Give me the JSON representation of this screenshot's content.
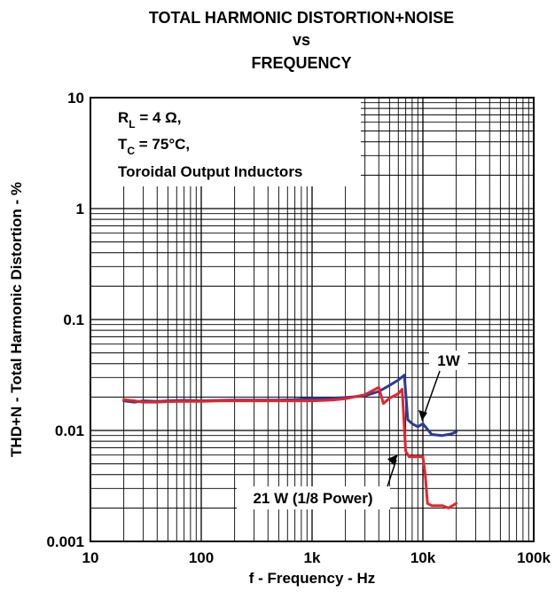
{
  "chart_data": {
    "type": "line",
    "title_lines": [
      "TOTAL HARMONIC DISTORTION+NOISE",
      "vs",
      "FREQUENCY"
    ],
    "xlabel": "f - Frequency - Hz",
    "ylabel": "THD+N - Total Harmonic Distortion - %",
    "x_scale": "log",
    "y_scale": "log",
    "xlim": [
      10,
      100000
    ],
    "ylim": [
      0.001,
      10
    ],
    "x_ticks": [
      {
        "value": 10,
        "label": "10"
      },
      {
        "value": 100,
        "label": "100"
      },
      {
        "value": 1000,
        "label": "1k"
      },
      {
        "value": 10000,
        "label": "10k"
      },
      {
        "value": 100000,
        "label": "100k"
      }
    ],
    "y_ticks": [
      {
        "value": 0.001,
        "label": "0.001"
      },
      {
        "value": 0.01,
        "label": "0.01"
      },
      {
        "value": 0.1,
        "label": "0.1"
      },
      {
        "value": 1,
        "label": "1"
      },
      {
        "value": 10,
        "label": "10"
      }
    ],
    "grid": true,
    "conditions": {
      "line1_main": "R",
      "line1_sub": "L",
      "line1_rest": " = 4 Ω,",
      "line2_main": "T",
      "line2_sub": "C",
      "line2_rest": " = 75°C,",
      "line3": "Toroidal Output Inductors"
    },
    "series": [
      {
        "name": "1W",
        "color": "#2b3a99",
        "x": [
          20,
          25,
          30,
          40,
          50,
          70,
          100,
          150,
          200,
          300,
          500,
          700,
          1000,
          1500,
          2000,
          3000,
          4000,
          5000,
          6000,
          6800,
          7300,
          8000,
          9000,
          10000,
          12000,
          15000,
          18000,
          20000
        ],
        "y": [
          0.0185,
          0.018,
          0.0185,
          0.0183,
          0.0185,
          0.0187,
          0.0185,
          0.0187,
          0.0188,
          0.0188,
          0.0188,
          0.019,
          0.0195,
          0.0195,
          0.0198,
          0.0205,
          0.0225,
          0.0255,
          0.0285,
          0.0315,
          0.0125,
          0.0115,
          0.0108,
          0.0115,
          0.0092,
          0.009,
          0.0093,
          0.0097
        ]
      },
      {
        "name": "21 W (1/8 Power)",
        "color": "#e8232b",
        "x": [
          20,
          25,
          30,
          40,
          50,
          70,
          100,
          150,
          200,
          300,
          500,
          700,
          1000,
          1500,
          2000,
          3000,
          4000,
          4400,
          5000,
          6000,
          6500,
          7000,
          7500,
          8000,
          10000,
          10500,
          11000,
          12000,
          15000,
          17000,
          20000
        ],
        "y": [
          0.019,
          0.0185,
          0.018,
          0.018,
          0.0182,
          0.0183,
          0.0183,
          0.0185,
          0.0185,
          0.0185,
          0.0185,
          0.0185,
          0.0185,
          0.0188,
          0.0193,
          0.021,
          0.0245,
          0.0175,
          0.0195,
          0.0215,
          0.0235,
          0.0065,
          0.0058,
          0.0058,
          0.0058,
          0.004,
          0.0022,
          0.0021,
          0.0021,
          0.002,
          0.0022
        ]
      }
    ],
    "annotations": [
      {
        "text": "1W",
        "series": "1W"
      },
      {
        "text": "21 W (1/8 Power)",
        "series": "21 W (1/8 Power)"
      }
    ]
  }
}
